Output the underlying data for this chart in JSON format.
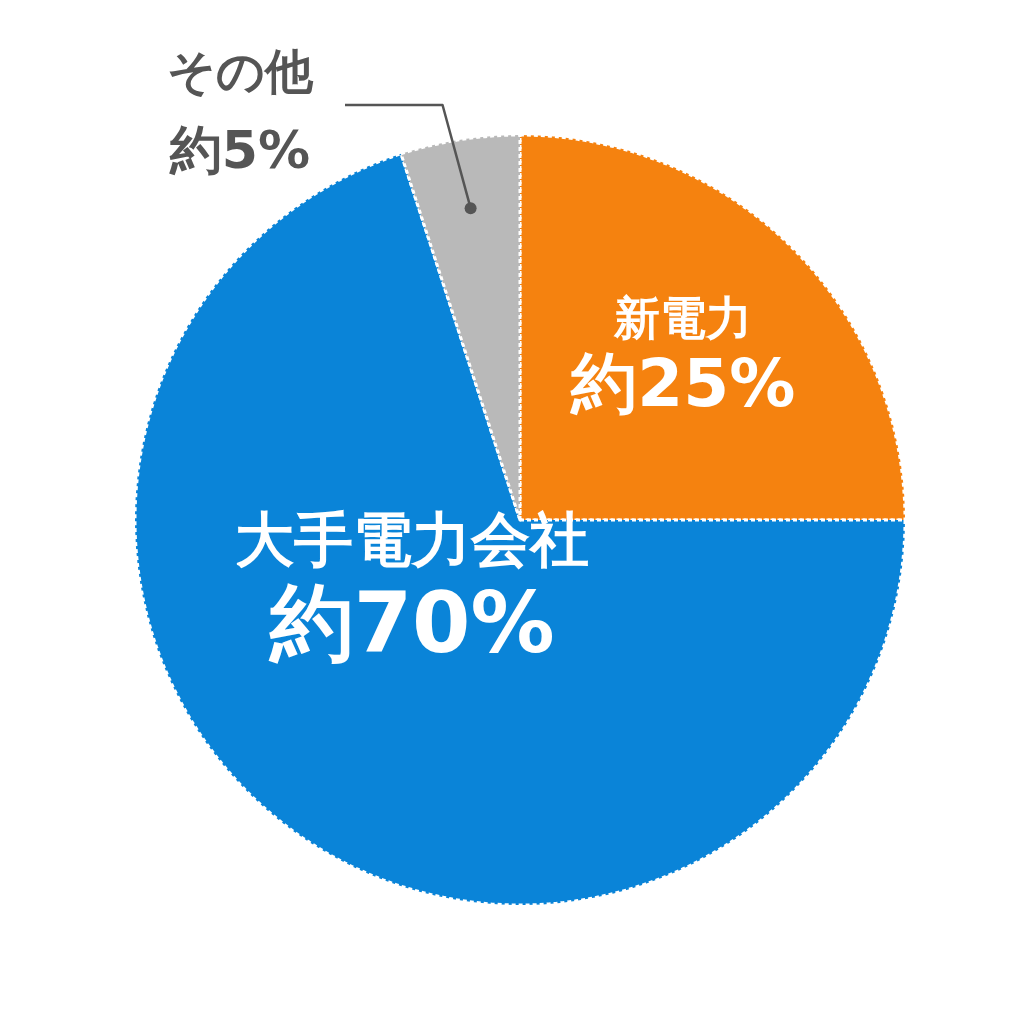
{
  "chart_data": {
    "type": "pie",
    "categories": [
      "新電力",
      "大手電力会社",
      "その他"
    ],
    "values": [
      25,
      70,
      5
    ],
    "colors": [
      "#f5820f",
      "#0a84d8",
      "#b9b9b9"
    ],
    "value_labels": [
      "約25%",
      "約70%",
      "約5%"
    ]
  }
}
